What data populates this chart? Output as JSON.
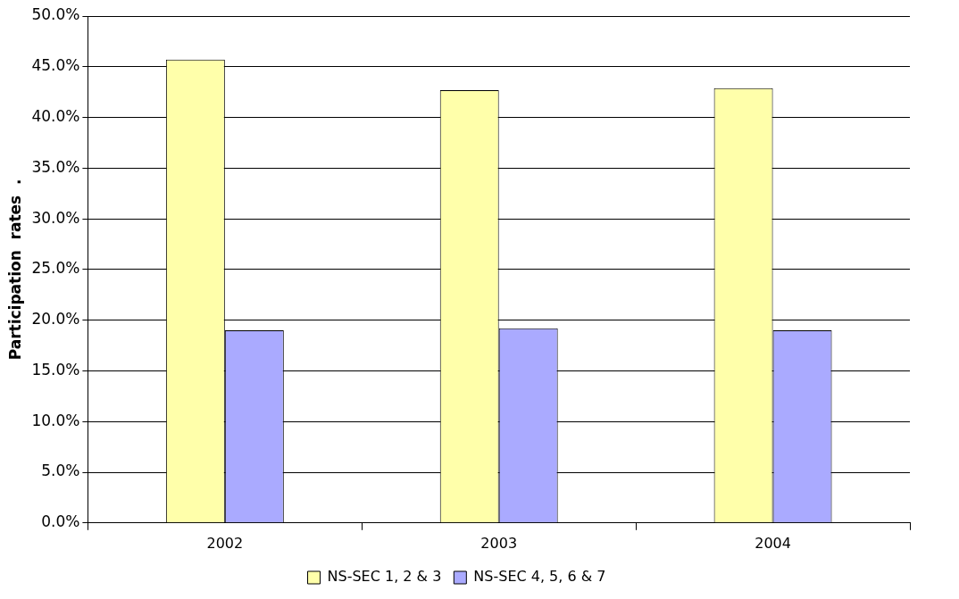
{
  "chart_data": {
    "type": "bar",
    "ylabel": "Participation  rates  .",
    "categories": [
      "2002",
      "2003",
      "2004"
    ],
    "series": [
      {
        "name": "NS-SEC 1, 2 & 3",
        "color": "#ffffaa",
        "values": [
          45.7,
          42.7,
          42.9
        ]
      },
      {
        "name": "NS-SEC 4, 5, 6 & 7",
        "color": "#aaaaff",
        "values": [
          19.0,
          19.2,
          19.0
        ]
      }
    ],
    "ylim": [
      0,
      50
    ],
    "yticks": [
      {
        "value": 0,
        "label": "0.0%"
      },
      {
        "value": 5,
        "label": "5.0%"
      },
      {
        "value": 10,
        "label": "10.0%"
      },
      {
        "value": 15,
        "label": "15.0%"
      },
      {
        "value": 20,
        "label": "20.0%"
      },
      {
        "value": 25,
        "label": "25.0%"
      },
      {
        "value": 30,
        "label": "30.0%"
      },
      {
        "value": 35,
        "label": "35.0%"
      },
      {
        "value": 40,
        "label": "40.0%"
      },
      {
        "value": 45,
        "label": "45.0%"
      },
      {
        "value": 50,
        "label": "50.0%"
      }
    ],
    "grid": "y",
    "legend": "bottom"
  }
}
